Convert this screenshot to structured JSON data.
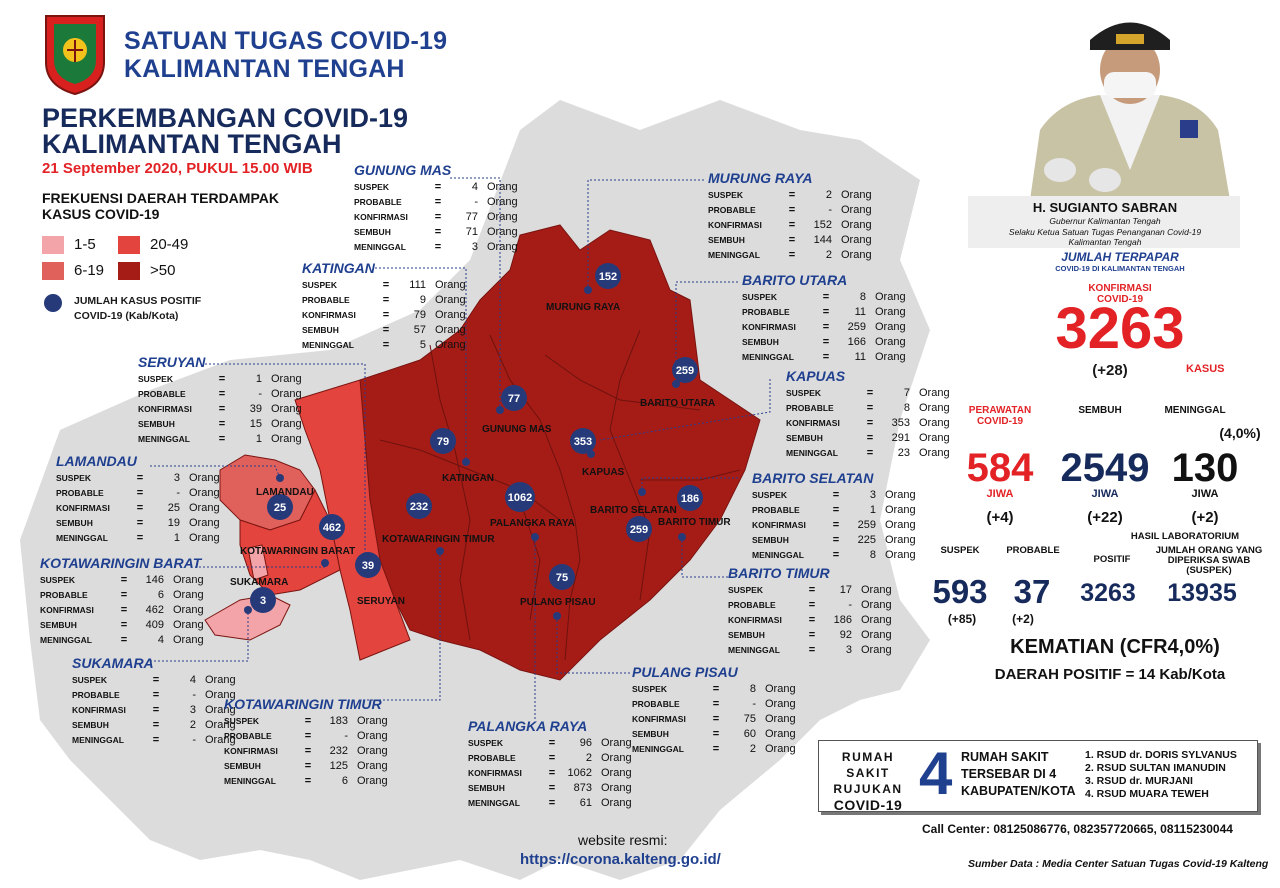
{
  "org": {
    "line1": "SATUAN TUGAS COVID-19",
    "line2": "KALIMANTAN TENGAH"
  },
  "title": {
    "line1": "PERKEMBANGAN COVID-19",
    "line2": "KALIMANTAN TENGAH",
    "date": "21 September 2020, PUKUL 15.00 WIB"
  },
  "legend": {
    "heading": "FREKUENSI DAERAH TERDAMPAK KASUS COVID-19",
    "items": [
      {
        "label": "1-5",
        "color": "#f3a4a8"
      },
      {
        "label": "20-49",
        "color": "#e3453e"
      },
      {
        "label": "6-19",
        "color": "#e0605c"
      },
      {
        "label": ">50",
        "color": "#a51c17"
      }
    ],
    "dot_label": "JUMLAH KASUS POSITIF COVID-19 (Kab/Kota)",
    "dot_color": "#263a7a"
  },
  "labels": {
    "suspek": "SUSPEK",
    "probable": "PROBABLE",
    "konfirmasi": "KONFIRMASI",
    "sembuh": "SEMBUH",
    "meninggal": "MENINGGAL",
    "eq": "=",
    "orang": "Orang"
  },
  "regions": {
    "gunung_mas": {
      "name": "GUNUNG MAS",
      "suspek": "4",
      "probable": "-",
      "konfirmasi": "77",
      "sembuh": "71",
      "meninggal": "3",
      "map_label": "GUNUNG MAS",
      "positive": "77"
    },
    "katingan": {
      "name": "KATINGAN",
      "suspek": "111",
      "probable": "9",
      "konfirmasi": "79",
      "sembuh": "57",
      "meninggal": "5",
      "map_label": "KATINGAN",
      "positive": "79"
    },
    "seruyan": {
      "name": "SERUYAN",
      "suspek": "1",
      "probable": "-",
      "konfirmasi": "39",
      "sembuh": "15",
      "meninggal": "1",
      "map_label": "SERUYAN",
      "positive": "39"
    },
    "lamandau": {
      "name": "LAMANDAU",
      "suspek": "3",
      "probable": "-",
      "konfirmasi": "25",
      "sembuh": "19",
      "meninggal": "1",
      "map_label": "LAMANDAU",
      "positive": "25"
    },
    "kobar": {
      "name": "KOTAWARINGIN BARAT",
      "suspek": "146",
      "probable": "6",
      "konfirmasi": "462",
      "sembuh": "409",
      "meninggal": "4",
      "map_label": "KOTAWARINGIN BARAT",
      "positive": "462"
    },
    "sukamara": {
      "name": "SUKAMARA",
      "suspek": "4",
      "probable": "-",
      "konfirmasi": "3",
      "sembuh": "2",
      "meninggal": "-",
      "map_label": "SUKAMARA",
      "positive": "3"
    },
    "kotim": {
      "name": "KOTAWARINGIN TIMUR",
      "suspek": "183",
      "probable": "-",
      "konfirmasi": "232",
      "sembuh": "125",
      "meninggal": "6",
      "map_label": "KOTAWARINGIN TIMUR",
      "positive": "232"
    },
    "palangka_raya": {
      "name": "PALANGKA RAYA",
      "suspek": "96",
      "probable": "2",
      "konfirmasi": "1062",
      "sembuh": "873",
      "meninggal": "61",
      "map_label": "PALANGKA RAYA",
      "positive": "1062"
    },
    "pulang_pisau": {
      "name": "PULANG PISAU",
      "suspek": "8",
      "probable": "-",
      "konfirmasi": "75",
      "sembuh": "60",
      "meninggal": "2",
      "map_label": "PULANG PISAU",
      "positive": "75"
    },
    "barito_timur": {
      "name": "BARITO TIMUR",
      "suspek": "17",
      "probable": "-",
      "konfirmasi": "186",
      "sembuh": "92",
      "meninggal": "3",
      "map_label": "BARITO TIMUR",
      "positive": "186"
    },
    "barito_selatan": {
      "name": "BARITO SELATAN",
      "suspek": "3",
      "probable": "1",
      "konfirmasi": "259",
      "sembuh": "225",
      "meninggal": "8",
      "map_label": "BARITO SELATAN",
      "positive": "259"
    },
    "kapuas": {
      "name": "KAPUAS",
      "suspek": "7",
      "probable": "8",
      "konfirmasi": "353",
      "sembuh": "291",
      "meninggal": "23",
      "map_label": "KAPUAS",
      "positive": "353"
    },
    "barito_utara": {
      "name": "BARITO UTARA",
      "suspek": "8",
      "probable": "11",
      "konfirmasi": "259",
      "sembuh": "166",
      "meninggal": "11",
      "map_label": "BARITO UTARA",
      "positive": "259"
    },
    "murung_raya": {
      "name": "MURUNG RAYA",
      "suspek": "2",
      "probable": "-",
      "konfirmasi": "152",
      "sembuh": "144",
      "meninggal": "2",
      "map_label": "MURUNG RAYA",
      "positive": "152"
    }
  },
  "governor": {
    "name": "H. SUGIANTO SABRAN",
    "line1": "Gubernur Kalimantan Tengah",
    "line2": "Selaku Ketua Satuan Tugas Penanganan Covid-19",
    "line3": "Kalimantan Tengah"
  },
  "summary": {
    "heading": "JUMLAH TERPAPAR",
    "subheading": "COVID-19 DI KALIMANTAN TENGAH",
    "konfirmasi_label1": "KONFIRMASI",
    "konfirmasi_label2": "COVID-19",
    "konfirmasi": "3263",
    "konfirmasi_change": "(+28)",
    "kasus": "KASUS",
    "perawatan_label1": "PERAWATAN",
    "perawatan_label2": "COVID-19",
    "perawatan": "584",
    "perawatan_change": "(+4)",
    "sembuh_label": "SEMBUH",
    "sembuh": "2549",
    "sembuh_change": "(+22)",
    "meninggal_label": "MENINGGAL",
    "meninggal": "130",
    "meninggal_pct": "(4,0%)",
    "meninggal_change": "(+2)",
    "jiwa": "JIWA"
  },
  "lab": {
    "suspek_label": "SUSPEK",
    "suspek": "593",
    "suspek_change": "(+85)",
    "probable_label": "PROBABLE",
    "probable": "37",
    "probable_change": "(+2)",
    "heading": "HASIL LABORATORIUM",
    "positif_label": "POSITIF",
    "positif": "3263",
    "swab_label": "JUMLAH ORANG YANG DIPERIKSA SWAB (SUSPEK)",
    "swab": "13935"
  },
  "kematian": "KEMATIAN (CFR4,0%)",
  "daerah_positif": "DAERAH POSITIF = 14 Kab/Kota",
  "rumah_sakit": {
    "left1": "RUMAH SAKIT",
    "left2": "RUJUKAN",
    "left3": "COVID-19",
    "count": "4",
    "mid1": "RUMAH SAKIT",
    "mid2": "TERSEBAR DI 4",
    "mid3": "KABUPATEN/KOTA",
    "list": [
      "1. RSUD dr. DORIS SYLVANUS",
      "2. RSUD SULTAN IMANUDIN",
      "3. RSUD dr. MURJANI",
      "4. RSUD MUARA TEWEH"
    ]
  },
  "call_center_label": "Call Center",
  "call_center": ": 08125086776, 082357720665, 08115230044",
  "source": "Sumber Data : Media Center Satuan Tugas Covid-19 Kalteng",
  "website_label": "website resmi:",
  "website": "https://corona.kalteng.go.id/"
}
